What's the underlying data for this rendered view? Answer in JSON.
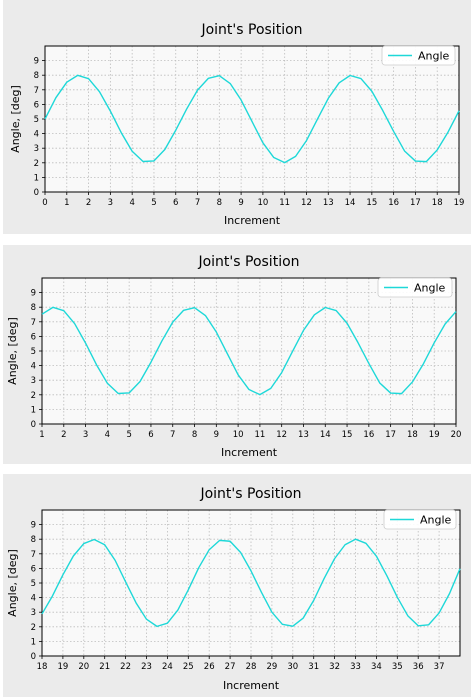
{
  "header": {
    "line1": "",
    "line2": ""
  },
  "colors": {
    "line": "#1ed8d8",
    "panel_bg": "#ebebeb",
    "plot_bg": "#f9f9f9",
    "grid": "#bdbdbd"
  },
  "chart_data": [
    {
      "type": "line",
      "title": "Joint's Position",
      "xlabel": "Increment",
      "ylabel": "Angle, [deg]",
      "xlim": [
        0,
        19
      ],
      "ylim": [
        0,
        10
      ],
      "xticks": [
        0,
        1,
        2,
        3,
        4,
        5,
        6,
        7,
        8,
        9,
        10,
        11,
        12,
        13,
        14,
        15,
        16,
        17,
        18,
        19
      ],
      "yticks": [
        0,
        1,
        2,
        3,
        4,
        5,
        6,
        7,
        8,
        9
      ],
      "grid": true,
      "legend_position": "top-right",
      "series": [
        {
          "name": "Angle",
          "x": [
            0,
            0.5,
            1,
            1.5,
            2,
            2.5,
            3,
            3.5,
            4,
            4.5,
            5,
            5.5,
            6,
            6.5,
            7,
            7.5,
            8,
            8.5,
            9,
            9.5,
            10,
            10.5,
            11,
            11.5,
            12,
            12.5,
            13,
            13.5,
            14,
            14.5,
            15,
            15.5,
            16,
            16.5,
            17,
            17.5,
            18,
            18.5,
            19
          ],
          "values": [
            5.0,
            6.46,
            7.52,
            7.99,
            7.76,
            6.87,
            5.54,
            4.06,
            2.79,
            2.09,
            2.13,
            2.91,
            4.23,
            5.68,
            6.98,
            7.79,
            7.97,
            7.43,
            6.3,
            4.83,
            3.37,
            2.36,
            2.01,
            2.44,
            3.52,
            4.98,
            6.41,
            7.48,
            7.98,
            7.77,
            6.9,
            5.58,
            4.15,
            2.81,
            2.12,
            2.08,
            2.88,
            4.11,
            5.56
          ]
        }
      ]
    },
    {
      "type": "line",
      "title": "Joint's Position",
      "xlabel": "Increment",
      "ylabel": "Angle, [deg]",
      "xlim": [
        1,
        20
      ],
      "ylim": [
        0,
        10
      ],
      "xticks": [
        1,
        2,
        3,
        4,
        5,
        6,
        7,
        8,
        9,
        10,
        11,
        12,
        13,
        14,
        15,
        16,
        17,
        18,
        19,
        20
      ],
      "yticks": [
        0,
        1,
        2,
        3,
        4,
        5,
        6,
        7,
        8,
        9
      ],
      "grid": true,
      "legend_position": "top-right",
      "series": [
        {
          "name": "Angle",
          "x": [
            1,
            1.5,
            2,
            2.5,
            3,
            3.5,
            4,
            4.5,
            5,
            5.5,
            6,
            6.5,
            7,
            7.5,
            8,
            8.5,
            9,
            9.5,
            10,
            10.5,
            11,
            11.5,
            12,
            12.5,
            13,
            13.5,
            14,
            14.5,
            15,
            15.5,
            16,
            16.5,
            17,
            17.5,
            18,
            18.5,
            19,
            19.5,
            20
          ],
          "values": [
            7.52,
            7.99,
            7.76,
            6.87,
            5.54,
            4.06,
            2.79,
            2.09,
            2.13,
            2.91,
            4.23,
            5.68,
            6.98,
            7.79,
            7.97,
            7.43,
            6.3,
            4.83,
            3.37,
            2.36,
            2.01,
            2.44,
            3.52,
            4.98,
            6.41,
            7.48,
            7.98,
            7.77,
            6.9,
            5.58,
            4.15,
            2.81,
            2.12,
            2.08,
            2.88,
            4.11,
            5.56,
            6.85,
            7.7
          ]
        }
      ]
    },
    {
      "type": "line",
      "title": "Joint's Position",
      "xlabel": "Increment",
      "ylabel": "Angle, [deg]",
      "xlim": [
        18,
        38
      ],
      "ylim": [
        0,
        10
      ],
      "xticks": [
        18,
        19,
        20,
        21,
        22,
        23,
        24,
        25,
        26,
        27,
        28,
        29,
        30,
        31,
        32,
        33,
        34,
        35,
        36,
        37
      ],
      "yticks": [
        0,
        1,
        2,
        3,
        4,
        5,
        6,
        7,
        8,
        9
      ],
      "grid": true,
      "legend_position": "top-right",
      "series": [
        {
          "name": "Angle",
          "x": [
            18,
            18.5,
            19,
            19.5,
            20,
            20.5,
            21,
            21.5,
            22,
            22.5,
            23,
            23.5,
            24,
            24.5,
            25,
            25.5,
            26,
            26.5,
            27,
            27.5,
            28,
            28.5,
            29,
            29.5,
            30,
            30.5,
            31,
            31.5,
            32,
            32.5,
            33,
            33.5,
            34,
            34.5,
            35,
            35.5,
            36,
            36.5,
            37,
            37.5,
            38
          ],
          "values": [
            2.88,
            4.11,
            5.56,
            6.85,
            7.7,
            7.98,
            7.62,
            6.55,
            5.08,
            3.64,
            2.52,
            2.03,
            2.25,
            3.15,
            4.53,
            6.05,
            7.28,
            7.92,
            7.86,
            7.1,
            5.83,
            4.36,
            3.0,
            2.17,
            2.04,
            2.6,
            3.81,
            5.31,
            6.67,
            7.62,
            8.0,
            7.72,
            6.84,
            5.5,
            4.03,
            2.76,
            2.07,
            2.14,
            2.95,
            4.28,
            5.98
          ]
        }
      ]
    }
  ]
}
